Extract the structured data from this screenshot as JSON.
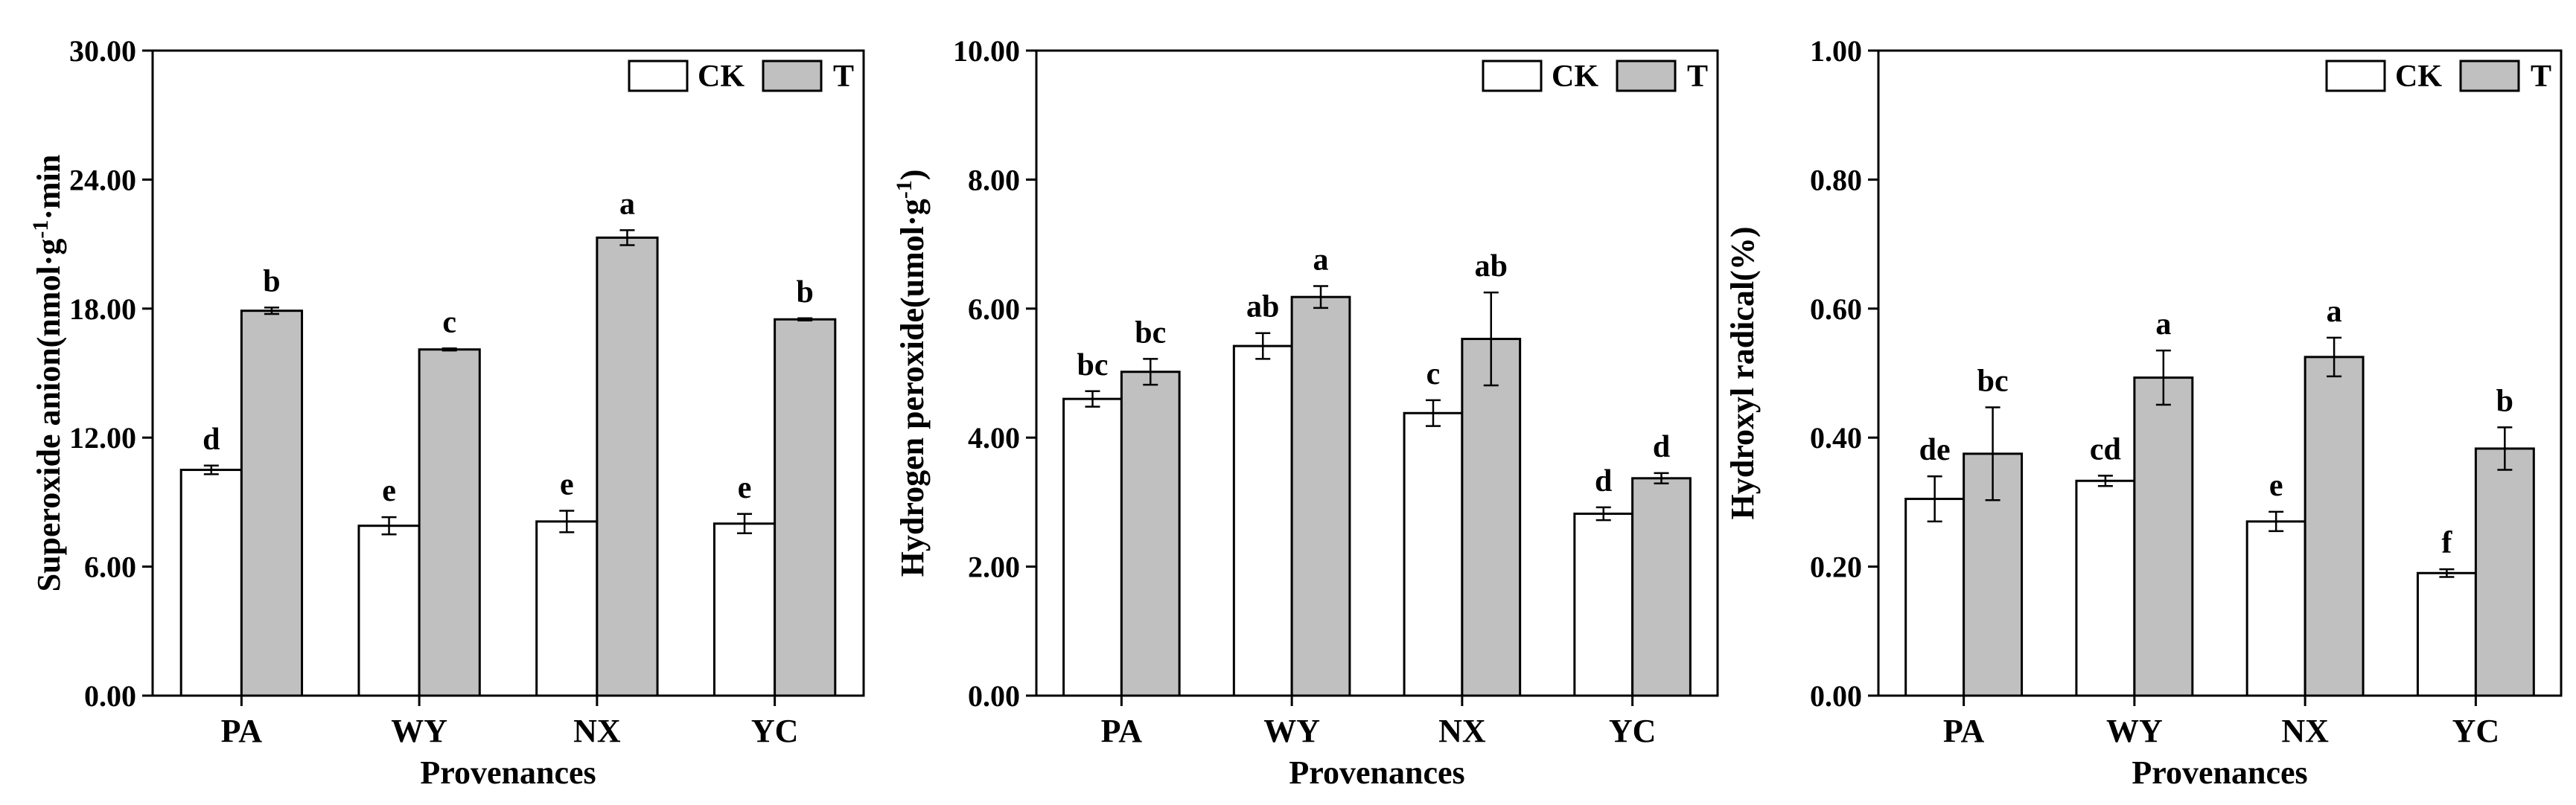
{
  "colors": {
    "ck": "#ffffff",
    "t": "#c0c0c0",
    "stroke": "#000000"
  },
  "legend": {
    "ck_label": "CK",
    "t_label": "T"
  },
  "chart_data": [
    {
      "type": "bar",
      "title": "",
      "xlabel": "Provenances",
      "ylabel_main": "Superoxide anion(nmol·g",
      "ylabel_sup": "-1",
      "ylabel_tail": "·min",
      "ylim": [
        0,
        30
      ],
      "yticks": [
        "0.00",
        "6.00",
        "12.00",
        "18.00",
        "24.00",
        "30.00"
      ],
      "categories": [
        "PA",
        "WY",
        "NX",
        "YC"
      ],
      "series": [
        {
          "name": "CK",
          "values": [
            10.5,
            7.9,
            8.1,
            8.0
          ],
          "errors": [
            0.2,
            0.4,
            0.5,
            0.45
          ],
          "letters": [
            "d",
            "e",
            "e",
            "e"
          ]
        },
        {
          "name": "T",
          "values": [
            17.9,
            16.1,
            21.3,
            17.5
          ],
          "errors": [
            0.15,
            0.05,
            0.35,
            0.05
          ],
          "letters": [
            "b",
            "c",
            "a",
            "b"
          ]
        }
      ],
      "legend_position": "top-right"
    },
    {
      "type": "bar",
      "title": "",
      "xlabel": "Provenances",
      "ylabel_main": "Hydrogen peroxide(umol·g",
      "ylabel_sup": "-1",
      "ylabel_tail": ")",
      "ylim": [
        0,
        10
      ],
      "yticks": [
        "0.00",
        "2.00",
        "4.00",
        "6.00",
        "8.00",
        "10.00"
      ],
      "categories": [
        "PA",
        "WY",
        "NX",
        "YC"
      ],
      "series": [
        {
          "name": "CK",
          "values": [
            4.6,
            5.42,
            4.38,
            2.82
          ],
          "errors": [
            0.12,
            0.2,
            0.2,
            0.1
          ],
          "letters": [
            "bc",
            "ab",
            "c",
            "d"
          ]
        },
        {
          "name": "T",
          "values": [
            5.02,
            6.18,
            5.53,
            3.37
          ],
          "errors": [
            0.2,
            0.17,
            0.72,
            0.08
          ],
          "letters": [
            "bc",
            "a",
            "ab",
            "d"
          ]
        }
      ],
      "legend_position": "top-right"
    },
    {
      "type": "bar",
      "title": "",
      "xlabel": "Provenances",
      "ylabel_main": "Hydroxyl radical(%)",
      "ylabel_sup": "",
      "ylabel_tail": "",
      "ylim": [
        0,
        1
      ],
      "yticks": [
        "0.00",
        "0.20",
        "0.40",
        "0.60",
        "0.80",
        "1.00"
      ],
      "categories": [
        "PA",
        "WY",
        "NX",
        "YC"
      ],
      "series": [
        {
          "name": "CK",
          "values": [
            0.305,
            0.333,
            0.27,
            0.19
          ],
          "errors": [
            0.035,
            0.008,
            0.015,
            0.006
          ],
          "letters": [
            "de",
            "cd",
            "e",
            "f"
          ]
        },
        {
          "name": "T",
          "values": [
            0.375,
            0.493,
            0.525,
            0.383
          ],
          "errors": [
            0.072,
            0.042,
            0.03,
            0.033
          ],
          "letters": [
            "bc",
            "a",
            "a",
            "b"
          ]
        }
      ],
      "legend_position": "top-right"
    }
  ]
}
